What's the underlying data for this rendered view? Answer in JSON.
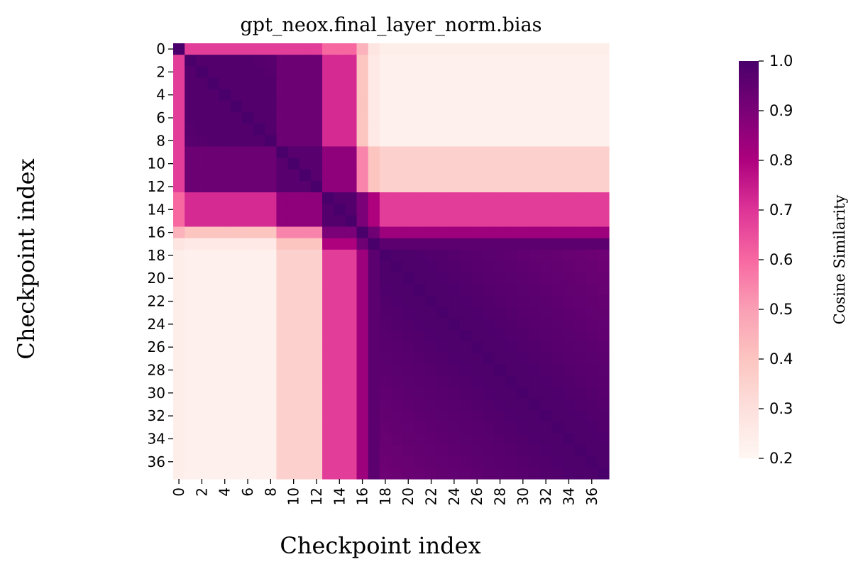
{
  "chart_data": {
    "type": "heatmap",
    "title": "gpt_neox.final_layer_norm.bias",
    "xlabel": "Checkpoint index",
    "ylabel": "Checkpoint index",
    "n": 38,
    "tick_labels": [
      "0",
      "2",
      "4",
      "6",
      "8",
      "10",
      "12",
      "14",
      "16",
      "18",
      "20",
      "22",
      "24",
      "26",
      "28",
      "30",
      "32",
      "34",
      "36"
    ],
    "colorbar": {
      "label": "Cosine Similarity",
      "vmin": 0.2,
      "vmax": 1.0,
      "ticks": [
        "0.2",
        "0.3",
        "0.4",
        "0.5",
        "0.6",
        "0.7",
        "0.8",
        "0.9",
        "1.0"
      ],
      "colormap": "RdPu",
      "colors": [
        "#fff7f3",
        "#fde0dd",
        "#fcc5c0",
        "#fa9fb5",
        "#f768a1",
        "#dd3497",
        "#ae017e",
        "#7a0177",
        "#49006a"
      ]
    },
    "block_similarity_matrix": {
      "blocks": [
        "0",
        "1-8",
        "9-12",
        "13-15",
        "16",
        "17",
        "18-37"
      ],
      "values": [
        [
          1.0,
          0.68,
          0.68,
          0.6,
          0.45,
          0.28,
          0.24
        ],
        [
          0.68,
          0.98,
          0.93,
          0.72,
          0.4,
          0.26,
          0.23
        ],
        [
          0.68,
          0.93,
          0.97,
          0.86,
          0.55,
          0.4,
          0.36
        ],
        [
          0.6,
          0.72,
          0.86,
          0.98,
          0.9,
          0.8,
          0.68
        ],
        [
          0.45,
          0.4,
          0.55,
          0.9,
          1.0,
          0.92,
          0.83
        ],
        [
          0.28,
          0.26,
          0.4,
          0.8,
          0.92,
          1.0,
          0.96
        ],
        [
          0.24,
          0.23,
          0.36,
          0.68,
          0.83,
          0.96,
          0.99
        ]
      ]
    }
  }
}
